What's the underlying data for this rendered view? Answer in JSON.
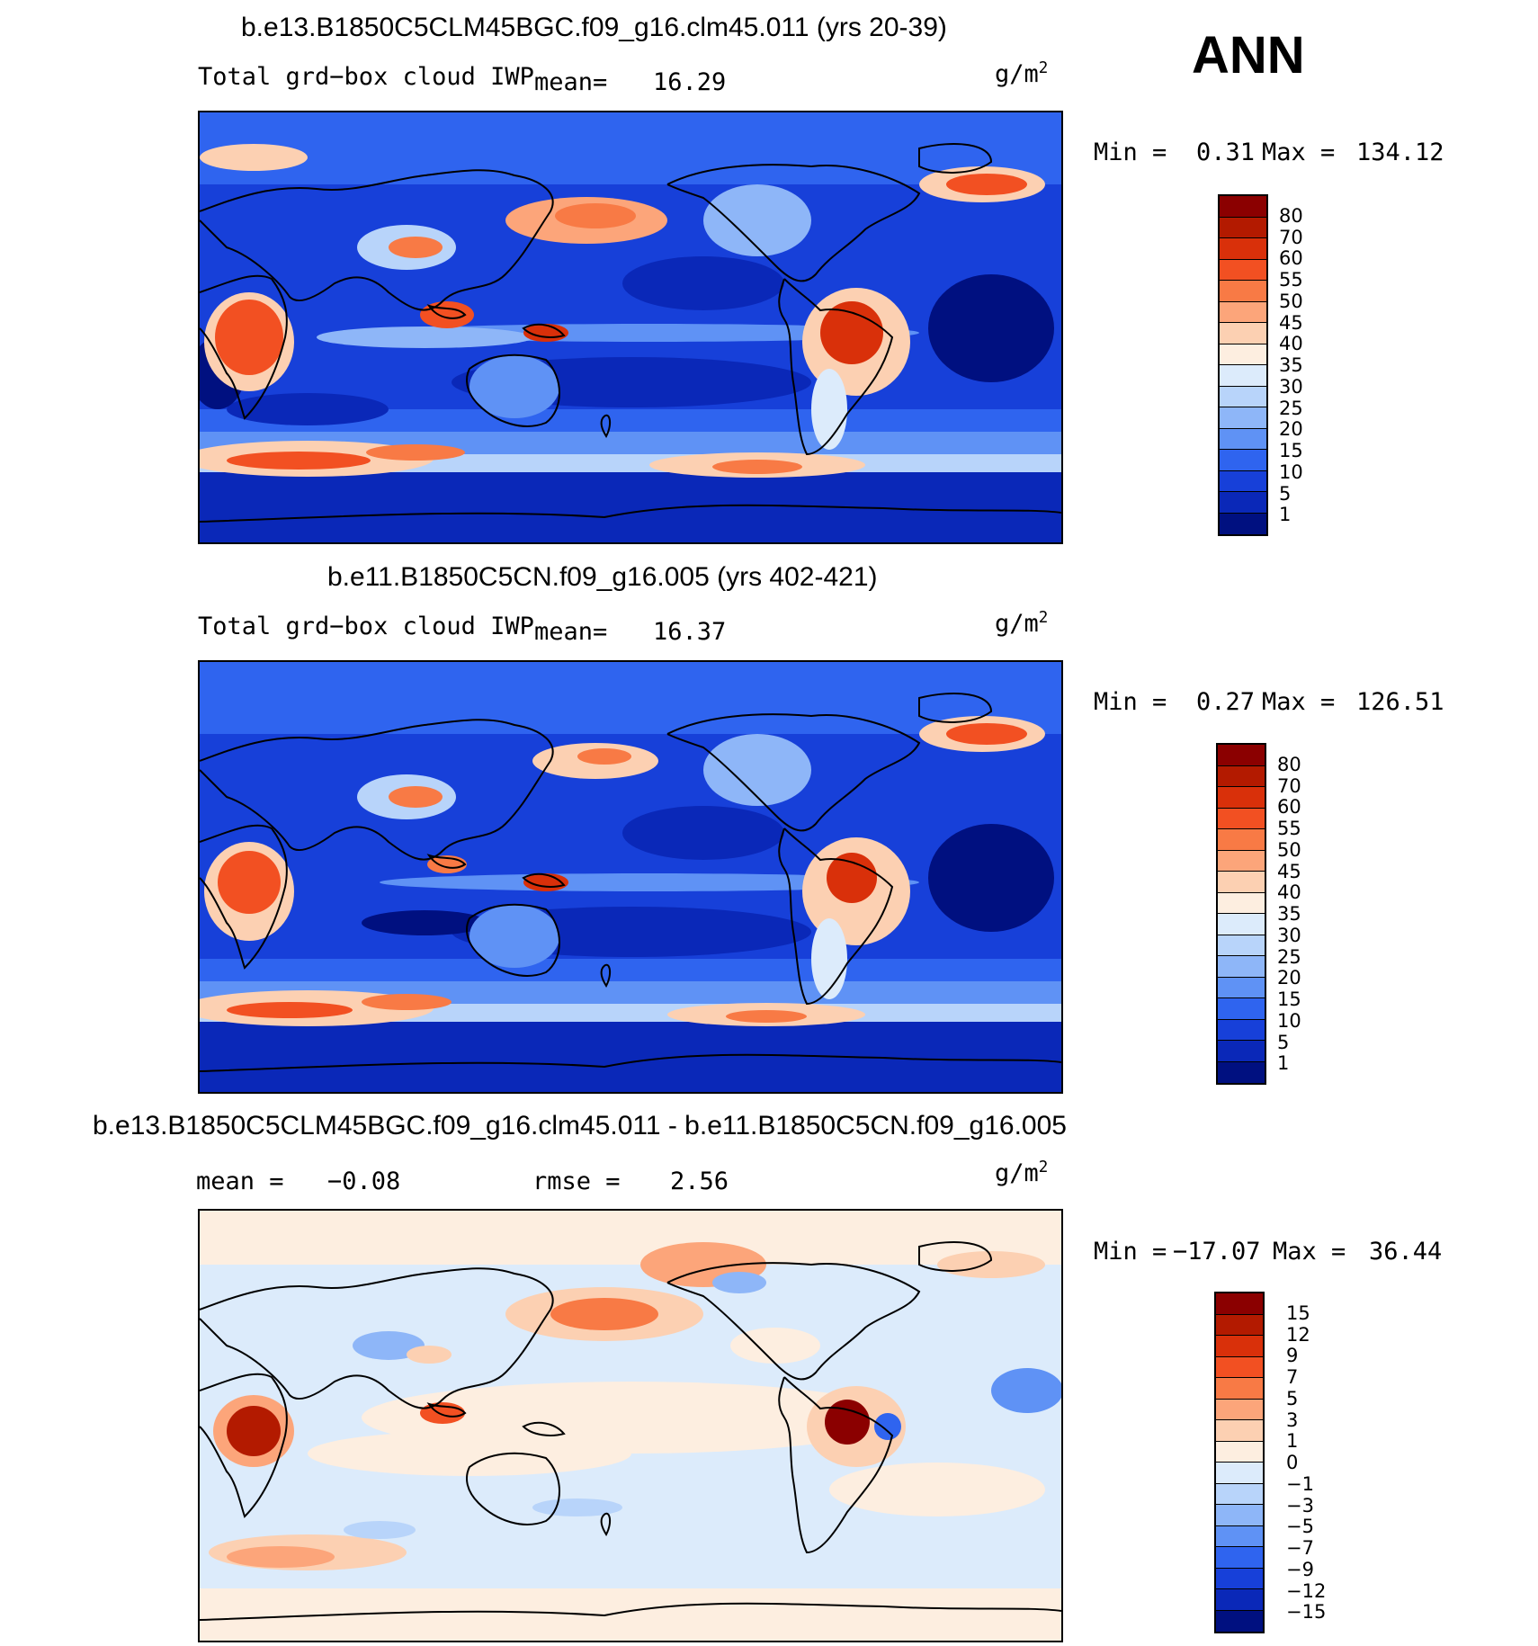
{
  "season": "ANN",
  "units": "g/m",
  "units_exp": "2",
  "panels": [
    {
      "title": "b.e13.B1850C5CLM45BGC.f09_g16.clm45.011 (yrs 20-39)",
      "variable": "Total grd−box cloud IWP",
      "mean_label": "mean=",
      "mean_value": "16.29",
      "min_label": "Min =",
      "min_value": "0.31",
      "max_label": "Max =",
      "max_value": "134.12"
    },
    {
      "title": "b.e11.B1850C5CN.f09_g16.005 (yrs 402-421)",
      "variable": "Total grd−box cloud IWP",
      "mean_label": "mean=",
      "mean_value": "16.37",
      "min_label": "Min =",
      "min_value": "0.27",
      "max_label": "Max =",
      "max_value": "126.51"
    },
    {
      "title": "b.e13.B1850C5CLM45BGC.f09_g16.clm45.011 - b.e11.B1850C5CN.f09_g16.005",
      "mean_label": "mean =",
      "mean_value": "−0.08",
      "rmse_label": "rmse =",
      "rmse_value": "2.56",
      "min_label": "Min =",
      "min_value": "−17.07",
      "max_label": "Max =",
      "max_value": "36.44"
    }
  ],
  "colorbars": {
    "abs": {
      "levels": [
        "80",
        "70",
        "60",
        "55",
        "50",
        "45",
        "40",
        "35",
        "30",
        "25",
        "20",
        "15",
        "10",
        "5",
        "1"
      ],
      "colors": [
        "#8b0000",
        "#b31a00",
        "#d9300a",
        "#f25022",
        "#f87a45",
        "#fca57a",
        "#fcd0b2",
        "#fdeee0",
        "#dcebfb",
        "#b8d4fa",
        "#8eb6f8",
        "#5f92f5",
        "#2f64ef",
        "#1740d9",
        "#0a28b8",
        "#001080"
      ]
    },
    "diff": {
      "levels": [
        "15",
        "12",
        "9",
        "7",
        "5",
        "3",
        "1",
        "0",
        "−1",
        "−3",
        "−5",
        "−7",
        "−9",
        "−12",
        "−15"
      ],
      "colors": [
        "#8b0000",
        "#b31a00",
        "#d9300a",
        "#f25022",
        "#f87a45",
        "#fca57a",
        "#fcd0b2",
        "#fdeee0",
        "#dcebfb",
        "#b8d4fa",
        "#8eb6f8",
        "#5f92f5",
        "#2f64ef",
        "#1740d9",
        "#0a28b8",
        "#001080"
      ]
    }
  },
  "chart_data": [
    {
      "type": "heatmap",
      "title": "b.e13.B1850C5CLM45BGC.f09_g16.clm45.011 (yrs 20-39)",
      "variable": "Total grd-box cloud IWP",
      "units": "g/m2",
      "mean": 16.29,
      "min": 0.31,
      "max": 134.12,
      "contour_levels": [
        1,
        5,
        10,
        15,
        20,
        25,
        30,
        35,
        40,
        45,
        50,
        55,
        60,
        70,
        80
      ]
    },
    {
      "type": "heatmap",
      "title": "b.e11.B1850C5CN.f09_g16.005 (yrs 402-421)",
      "variable": "Total grd-box cloud IWP",
      "units": "g/m2",
      "mean": 16.37,
      "min": 0.27,
      "max": 126.51,
      "contour_levels": [
        1,
        5,
        10,
        15,
        20,
        25,
        30,
        35,
        40,
        45,
        50,
        55,
        60,
        70,
        80
      ]
    },
    {
      "type": "heatmap",
      "title": "b.e13.B1850C5CLM45BGC.f09_g16.clm45.011 - b.e11.B1850C5CN.f09_g16.005",
      "units": "g/m2",
      "mean": -0.08,
      "rmse": 2.56,
      "min": -17.07,
      "max": 36.44,
      "contour_levels": [
        -15,
        -12,
        -9,
        -7,
        -5,
        -3,
        -1,
        0,
        1,
        3,
        5,
        7,
        9,
        12,
        15
      ]
    }
  ]
}
